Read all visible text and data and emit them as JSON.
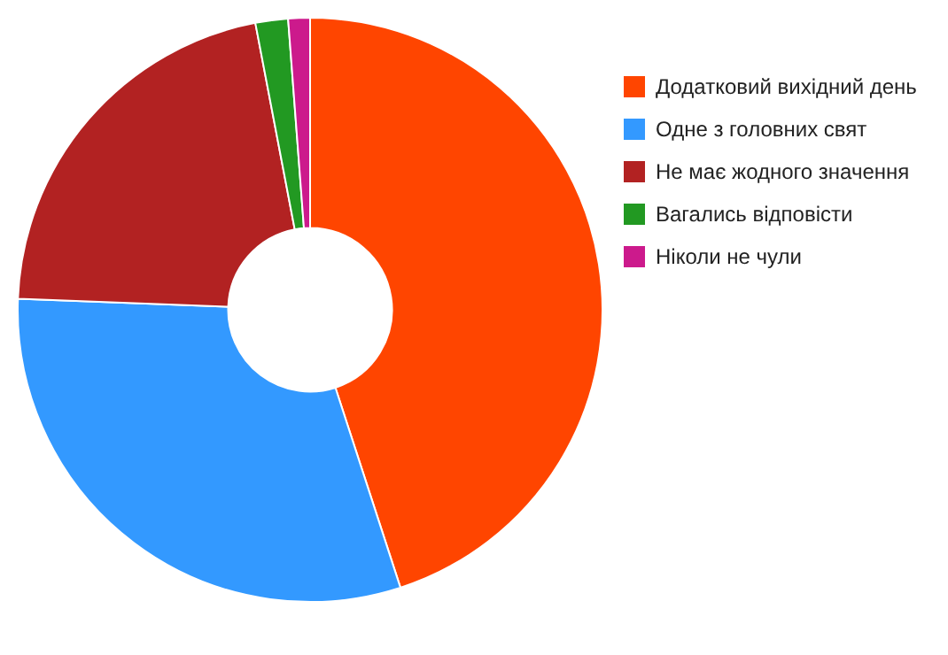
{
  "chart_data": {
    "type": "donut",
    "categories": [
      "Додатковий вихідний день",
      "Одне з головних свят",
      "Не має жодного значення",
      "Вагались відповісти",
      "Ніколи не чули"
    ],
    "values": [
      45,
      30.6,
      21.4,
      1.8,
      1.2
    ],
    "colors": [
      "#ff4500",
      "#3399ff",
      "#b22222",
      "#229922",
      "#cc1a8c"
    ],
    "legend": "right"
  }
}
